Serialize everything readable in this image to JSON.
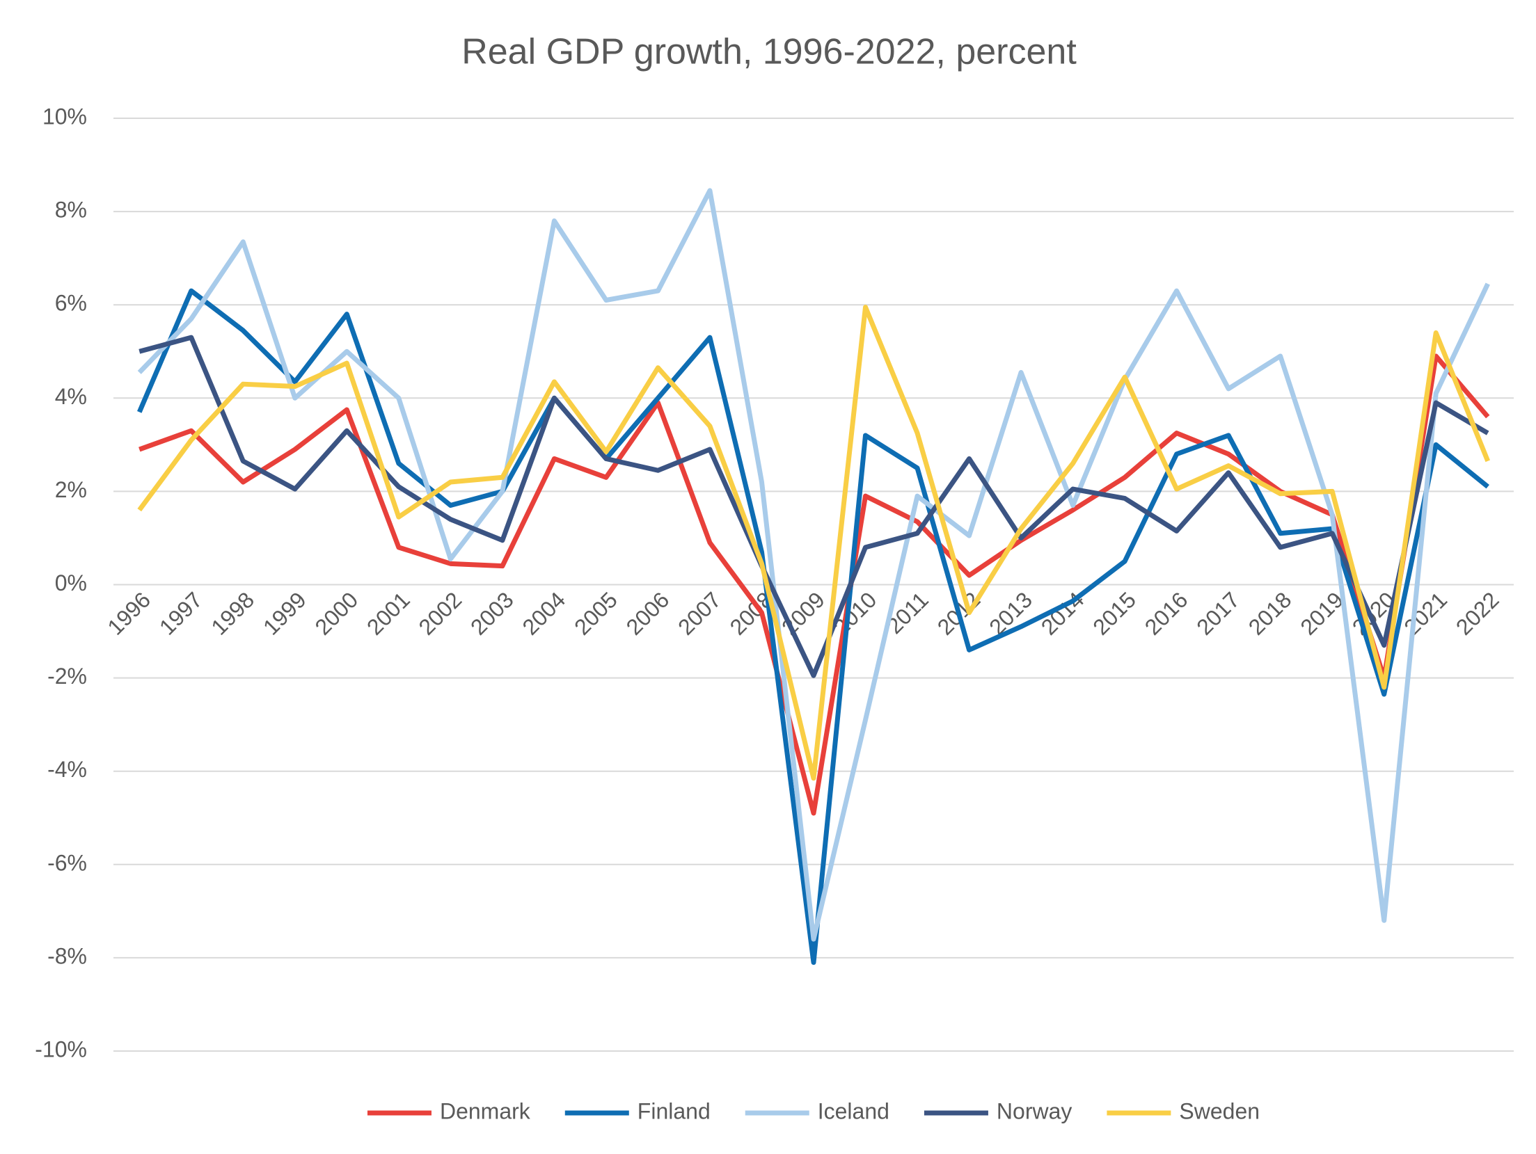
{
  "chart_data": {
    "type": "line",
    "title": "Real GDP growth, 1996-2022, percent",
    "categories": [
      "1996",
      "1997",
      "1998",
      "1999",
      "2000",
      "2001",
      "2002",
      "2003",
      "2004",
      "2005",
      "2006",
      "2007",
      "2008",
      "2009",
      "2010",
      "2011",
      "2012",
      "2013",
      "2014",
      "2015",
      "2016",
      "2017",
      "2018",
      "2019",
      "2020",
      "2021",
      "2022"
    ],
    "series": [
      {
        "name": "Denmark",
        "color": "#e8403a",
        "values": [
          2.9,
          3.3,
          2.2,
          2.9,
          3.75,
          0.8,
          0.45,
          0.4,
          2.7,
          2.3,
          3.9,
          0.9,
          -0.6,
          -4.9,
          1.9,
          1.35,
          0.2,
          0.95,
          1.6,
          2.3,
          3.25,
          2.8,
          2.0,
          1.5,
          -2.0,
          4.9,
          3.6
        ]
      },
      {
        "name": "Finland",
        "color": "#0e6db3",
        "values": [
          3.7,
          6.3,
          5.45,
          4.35,
          5.8,
          2.6,
          1.7,
          2.0,
          4.0,
          2.7,
          4.0,
          5.3,
          0.7,
          -8.1,
          3.2,
          2.5,
          -1.4,
          -0.9,
          -0.35,
          0.5,
          2.8,
          3.2,
          1.1,
          1.2,
          -2.35,
          3.0,
          2.1
        ]
      },
      {
        "name": "Iceland",
        "color": "#a8cbea",
        "values": [
          4.55,
          5.7,
          7.35,
          4.0,
          5.0,
          4.0,
          0.55,
          2.0,
          7.8,
          6.1,
          6.3,
          8.45,
          2.2,
          -7.6,
          -2.9,
          1.9,
          1.05,
          4.55,
          1.7,
          4.4,
          6.3,
          4.2,
          4.9,
          1.5,
          -7.2,
          4.1,
          6.45
        ]
      },
      {
        "name": "Norway",
        "color": "#3b5483",
        "values": [
          5.0,
          5.3,
          2.65,
          2.05,
          3.3,
          2.1,
          1.4,
          0.95,
          4.0,
          2.7,
          2.45,
          2.9,
          0.4,
          -1.95,
          0.8,
          1.1,
          2.7,
          1.0,
          2.05,
          1.85,
          1.15,
          2.4,
          0.8,
          1.1,
          -1.3,
          3.9,
          3.25
        ]
      },
      {
        "name": "Sweden",
        "color": "#f9ce45",
        "values": [
          1.6,
          3.1,
          4.3,
          4.25,
          4.75,
          1.45,
          2.2,
          2.3,
          4.35,
          2.85,
          4.65,
          3.4,
          0.45,
          -4.15,
          5.95,
          3.25,
          -0.6,
          1.2,
          2.6,
          4.45,
          2.05,
          2.55,
          1.95,
          2.0,
          -2.2,
          5.4,
          2.65
        ]
      }
    ],
    "ylim": [
      -10,
      10
    ],
    "yticks": [
      {
        "value": -10,
        "label": "-10%"
      },
      {
        "value": -8,
        "label": "-8%"
      },
      {
        "value": -6,
        "label": "-6%"
      },
      {
        "value": -4,
        "label": "-4%"
      },
      {
        "value": -2,
        "label": "-2%"
      },
      {
        "value": 0,
        "label": "0%"
      },
      {
        "value": 2,
        "label": "2%"
      },
      {
        "value": 4,
        "label": "4%"
      },
      {
        "value": 6,
        "label": "6%"
      },
      {
        "value": 8,
        "label": "8%"
      },
      {
        "value": 10,
        "label": "10%"
      }
    ],
    "grid": true,
    "legend": "bottom"
  }
}
